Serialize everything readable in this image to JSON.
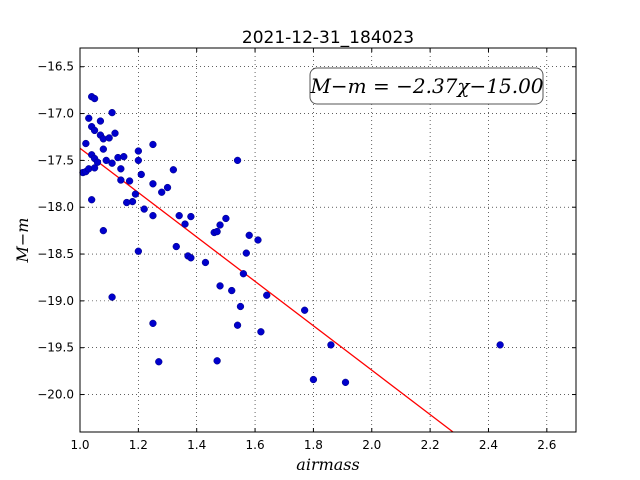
{
  "chart_data": {
    "type": "scatter",
    "title": "2021-12-31_184023",
    "xlabel": "airmass",
    "ylabel": "M−m",
    "xlim": [
      1.0,
      2.7
    ],
    "ylim": [
      -20.4,
      -16.3
    ],
    "xticks": [
      1.0,
      1.2,
      1.4,
      1.6,
      1.8,
      2.0,
      2.2,
      2.4,
      2.6
    ],
    "xtick_labels": [
      "1.0",
      "1.2",
      "1.4",
      "1.6",
      "1.8",
      "2.0",
      "2.2",
      "2.4",
      "2.6"
    ],
    "yticks": [
      -16.5,
      -17.0,
      -17.5,
      -18.0,
      -18.5,
      -19.0,
      -19.5,
      -20.0
    ],
    "ytick_labels": [
      "−16.5",
      "−17.0",
      "−17.5",
      "−18.0",
      "−18.5",
      "−19.0",
      "−19.5",
      "−20.0"
    ],
    "grid": true,
    "point_color": "#0000cc",
    "fit_color": "#ff0000",
    "fit": {
      "slope": -2.37,
      "intercept": -15.0
    },
    "annotation": "M−m = −2.37χ−15.00",
    "points": [
      [
        1.01,
        -17.63
      ],
      [
        1.02,
        -17.62
      ],
      [
        1.03,
        -17.59
      ],
      [
        1.02,
        -17.32
      ],
      [
        1.03,
        -17.05
      ],
      [
        1.04,
        -17.14
      ],
      [
        1.04,
        -16.82
      ],
      [
        1.05,
        -16.84
      ],
      [
        1.05,
        -17.18
      ],
      [
        1.04,
        -17.44
      ],
      [
        1.05,
        -17.48
      ],
      [
        1.05,
        -17.58
      ],
      [
        1.06,
        -17.52
      ],
      [
        1.04,
        -17.92
      ],
      [
        1.07,
        -17.08
      ],
      [
        1.07,
        -17.23
      ],
      [
        1.08,
        -17.27
      ],
      [
        1.08,
        -17.38
      ],
      [
        1.09,
        -17.5
      ],
      [
        1.1,
        -17.26
      ],
      [
        1.11,
        -16.99
      ],
      [
        1.12,
        -17.21
      ],
      [
        1.11,
        -17.53
      ],
      [
        1.13,
        -17.47
      ],
      [
        1.14,
        -17.59
      ],
      [
        1.15,
        -17.46
      ],
      [
        1.14,
        -17.71
      ],
      [
        1.17,
        -17.72
      ],
      [
        1.18,
        -17.94
      ],
      [
        1.16,
        -17.95
      ],
      [
        1.2,
        -17.4
      ],
      [
        1.2,
        -17.5
      ],
      [
        1.21,
        -17.65
      ],
      [
        1.19,
        -17.86
      ],
      [
        1.22,
        -18.02
      ],
      [
        1.08,
        -18.25
      ],
      [
        1.2,
        -18.47
      ],
      [
        1.25,
        -17.33
      ],
      [
        1.25,
        -17.75
      ],
      [
        1.28,
        -17.84
      ],
      [
        1.3,
        -17.79
      ],
      [
        1.32,
        -17.6
      ],
      [
        1.25,
        -18.09
      ],
      [
        1.34,
        -18.09
      ],
      [
        1.36,
        -18.18
      ],
      [
        1.38,
        -18.1
      ],
      [
        1.33,
        -18.42
      ],
      [
        1.37,
        -18.52
      ],
      [
        1.38,
        -18.54
      ],
      [
        1.43,
        -18.59
      ],
      [
        1.46,
        -18.27
      ],
      [
        1.48,
        -18.19
      ],
      [
        1.47,
        -18.26
      ],
      [
        1.5,
        -18.12
      ],
      [
        1.54,
        -17.5
      ],
      [
        1.58,
        -18.3
      ],
      [
        1.61,
        -18.35
      ],
      [
        1.57,
        -18.49
      ],
      [
        1.56,
        -18.71
      ],
      [
        1.48,
        -18.84
      ],
      [
        1.52,
        -18.89
      ],
      [
        1.64,
        -18.94
      ],
      [
        1.55,
        -19.06
      ],
      [
        1.54,
        -19.26
      ],
      [
        1.62,
        -19.33
      ],
      [
        1.77,
        -19.1
      ],
      [
        1.86,
        -19.47
      ],
      [
        1.8,
        -19.84
      ],
      [
        1.91,
        -19.87
      ],
      [
        1.25,
        -19.24
      ],
      [
        1.27,
        -19.65
      ],
      [
        1.47,
        -19.64
      ],
      [
        1.11,
        -18.96
      ],
      [
        2.44,
        -19.47
      ]
    ]
  }
}
